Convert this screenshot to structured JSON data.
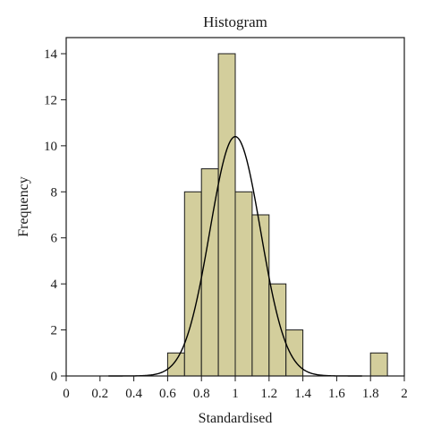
{
  "chart_data": {
    "type": "bar",
    "title": "Histogram",
    "xlabel": "Standardised",
    "ylabel": "Frequency",
    "xlim": [
      0,
      2
    ],
    "ylim": [
      0,
      14.7
    ],
    "xticks": [
      "0",
      "0.2",
      "0.4",
      "0.6",
      "0.8",
      "1",
      "1.2",
      "1.4",
      "1.6",
      "1.8",
      "2"
    ],
    "yticks": [
      "0",
      "2",
      "4",
      "6",
      "8",
      "10",
      "12",
      "14"
    ],
    "grid": false,
    "bins": [
      {
        "x0": 0.6,
        "x1": 0.7,
        "count": 1
      },
      {
        "x0": 0.7,
        "x1": 0.8,
        "count": 8
      },
      {
        "x0": 0.8,
        "x1": 0.9,
        "count": 9
      },
      {
        "x0": 0.9,
        "x1": 1.0,
        "count": 14
      },
      {
        "x0": 1.0,
        "x1": 1.1,
        "count": 8
      },
      {
        "x0": 1.1,
        "x1": 1.2,
        "count": 7
      },
      {
        "x0": 1.2,
        "x1": 1.3,
        "count": 4
      },
      {
        "x0": 1.3,
        "x1": 1.4,
        "count": 2
      },
      {
        "x0": 1.8,
        "x1": 1.9,
        "count": 1
      }
    ],
    "normal_curve": {
      "mean": 1.0,
      "sd": 0.15,
      "peak": 10.4
    },
    "colors": {
      "bar_fill": "#d3ce9c",
      "bar_stroke": "#1a1a1a",
      "curve": "#000000",
      "axis": "#1a1a1a"
    }
  }
}
